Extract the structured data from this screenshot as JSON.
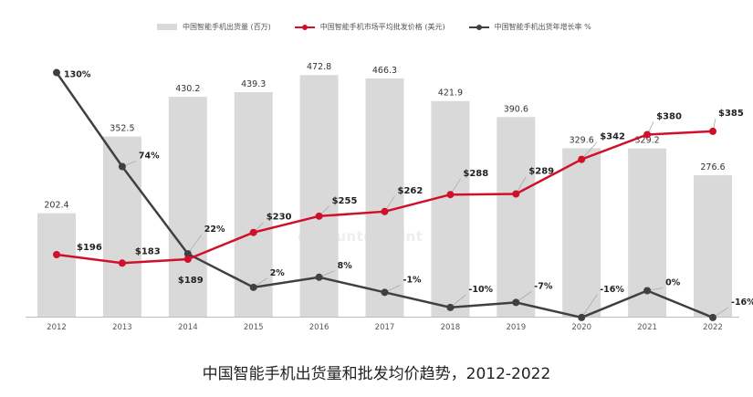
{
  "legend": {
    "shipments": "中国智能手机出货量 (百万)",
    "price": "中国智能手机市场平均批发价格 (美元)",
    "growth": "中国智能手机出货年增长率 %"
  },
  "watermark": "Counterpoint",
  "caption": "中国智能手机出货量和批发均价趋势，2012-2022",
  "colors": {
    "bar": "#d9d9d9",
    "price": "#d0102a",
    "growth": "#404040",
    "axis": "#bfbfbf"
  },
  "chart_data": {
    "type": "bar+line",
    "categories": [
      "2012",
      "2013",
      "2014",
      "2015",
      "2016",
      "2017",
      "2018",
      "2019",
      "2020",
      "2021",
      "2022"
    ],
    "series": [
      {
        "name": "中国智能手机出货量 (百万)",
        "type": "bar",
        "values": [
          202.4,
          352.5,
          430.2,
          439.3,
          472.8,
          466.3,
          421.9,
          390.6,
          329.6,
          329.2,
          276.6
        ],
        "labels": [
          "202.4",
          "352.5",
          "430.2",
          "439.3",
          "472.8",
          "466.3",
          "421.9",
          "390.6",
          "329.6",
          "329.2",
          "276.6"
        ]
      },
      {
        "name": "中国智能手机市场平均批发价格 (美元)",
        "type": "line",
        "values": [
          196,
          183,
          189,
          230,
          255,
          262,
          288,
          289,
          342,
          380,
          385
        ],
        "labels": [
          "$196",
          "$183",
          "$189",
          "$230",
          "$255",
          "$262",
          "$288",
          "$289",
          "$342",
          "$380",
          "$385"
        ]
      },
      {
        "name": "中国智能手机出货年增长率 %",
        "type": "line",
        "values": [
          130,
          74,
          22,
          2,
          8,
          -1,
          -10,
          -7,
          -16,
          0,
          -16
        ],
        "labels": [
          "130%",
          "74%",
          "22%",
          "2%",
          "8%",
          "-1%",
          "-10%",
          "-7%",
          "-16%",
          "0%",
          "-16%"
        ]
      }
    ],
    "title": "中国智能手机出货量和批发均价趋势，2012-2022",
    "xlabel": "",
    "ylabel": ""
  }
}
